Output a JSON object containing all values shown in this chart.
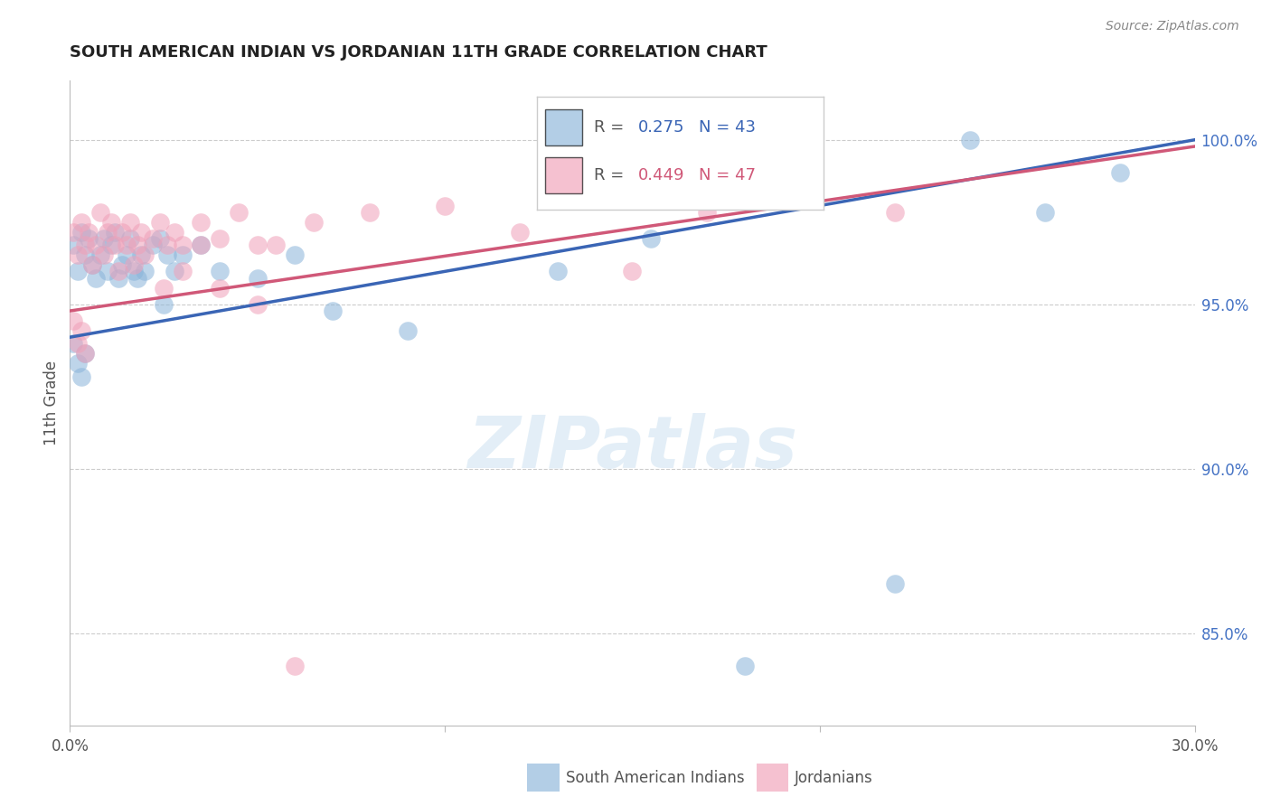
{
  "title": "SOUTH AMERICAN INDIAN VS JORDANIAN 11TH GRADE CORRELATION CHART",
  "source": "Source: ZipAtlas.com",
  "ylabel": "11th Grade",
  "ytick_labels": [
    "85.0%",
    "90.0%",
    "95.0%",
    "100.0%"
  ],
  "ytick_values": [
    0.85,
    0.9,
    0.95,
    1.0
  ],
  "xlim": [
    0.0,
    0.3
  ],
  "ylim": [
    0.822,
    1.018
  ],
  "r_blue": 0.275,
  "n_blue": 43,
  "r_pink": 0.449,
  "n_pink": 47,
  "blue_color": "#8ab4d9",
  "pink_color": "#f0a0b8",
  "blue_line_color": "#3a65b5",
  "pink_line_color": "#d05878",
  "blue_scatter_x": [
    0.001,
    0.002,
    0.003,
    0.004,
    0.005,
    0.006,
    0.007,
    0.008,
    0.009,
    0.01,
    0.011,
    0.012,
    0.013,
    0.014,
    0.015,
    0.016,
    0.017,
    0.018,
    0.019,
    0.02,
    0.022,
    0.024,
    0.026,
    0.028,
    0.03,
    0.035,
    0.04,
    0.05,
    0.06,
    0.001,
    0.002,
    0.003,
    0.004,
    0.025,
    0.155,
    0.24,
    0.26,
    0.28,
    0.07,
    0.09,
    0.13,
    0.18,
    0.22
  ],
  "blue_scatter_y": [
    0.968,
    0.96,
    0.972,
    0.965,
    0.97,
    0.962,
    0.958,
    0.965,
    0.97,
    0.96,
    0.968,
    0.972,
    0.958,
    0.962,
    0.965,
    0.97,
    0.96,
    0.958,
    0.965,
    0.96,
    0.968,
    0.97,
    0.965,
    0.96,
    0.965,
    0.968,
    0.96,
    0.958,
    0.965,
    0.938,
    0.932,
    0.928,
    0.935,
    0.95,
    0.97,
    1.0,
    0.978,
    0.99,
    0.948,
    0.942,
    0.96,
    0.84,
    0.865
  ],
  "pink_scatter_x": [
    0.001,
    0.002,
    0.003,
    0.004,
    0.005,
    0.006,
    0.007,
    0.008,
    0.009,
    0.01,
    0.011,
    0.012,
    0.013,
    0.014,
    0.015,
    0.016,
    0.017,
    0.018,
    0.019,
    0.02,
    0.022,
    0.024,
    0.026,
    0.028,
    0.03,
    0.035,
    0.04,
    0.045,
    0.05,
    0.001,
    0.002,
    0.003,
    0.004,
    0.055,
    0.065,
    0.08,
    0.1,
    0.12,
    0.15,
    0.17,
    0.22,
    0.025,
    0.03,
    0.035,
    0.04,
    0.05,
    0.06
  ],
  "pink_scatter_y": [
    0.972,
    0.965,
    0.975,
    0.968,
    0.972,
    0.962,
    0.968,
    0.978,
    0.965,
    0.972,
    0.975,
    0.968,
    0.96,
    0.972,
    0.968,
    0.975,
    0.962,
    0.968,
    0.972,
    0.965,
    0.97,
    0.975,
    0.968,
    0.972,
    0.968,
    0.975,
    0.97,
    0.978,
    0.968,
    0.945,
    0.938,
    0.942,
    0.935,
    0.968,
    0.975,
    0.978,
    0.98,
    0.972,
    0.96,
    0.978,
    0.978,
    0.955,
    0.96,
    0.968,
    0.955,
    0.95,
    0.84
  ]
}
